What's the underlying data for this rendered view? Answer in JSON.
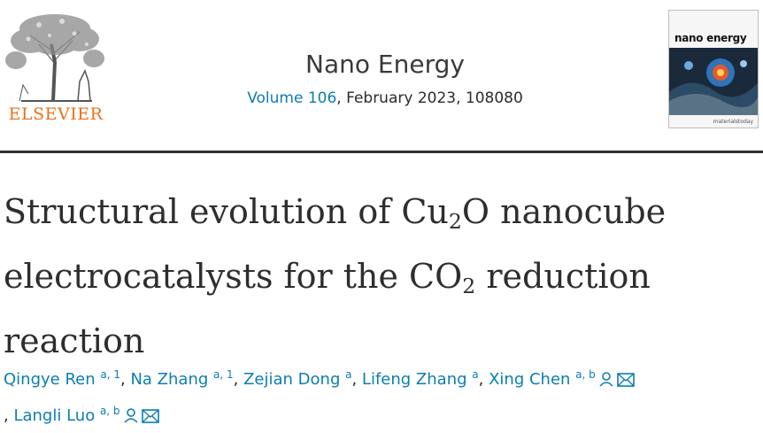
{
  "publisher": {
    "name": "ELSEVIER",
    "logo_icon": "tree-and-scholar-logo-icon"
  },
  "journal": {
    "name": "Nano Energy",
    "volume_link": "Volume 106",
    "issue_text": ", February 2023, 108080"
  },
  "cover": {
    "title": "nano energy",
    "footer": "materialstoday"
  },
  "article": {
    "title_part1": "Structural evolution of Cu",
    "title_sub1": "2",
    "title_part2": "O nanocube electrocatalysts for the CO",
    "title_sub2": "2",
    "title_part3": " reduction reaction"
  },
  "authors": [
    {
      "name": "Qingye Ren",
      "sup": "a, 1",
      "sep": ", "
    },
    {
      "name": "Na Zhang",
      "sup": "a, 1",
      "sep": ", "
    },
    {
      "name": "Zejian Dong",
      "sup": "a",
      "sep": ", "
    },
    {
      "name": "Lifeng Zhang",
      "sup": "a",
      "sep": ", "
    },
    {
      "name": "Xing Chen",
      "sup": "a, b",
      "sep": ""
    },
    {
      "name": "Langli Luo",
      "sup": "a, b",
      "sep": ""
    }
  ],
  "author_sep": ", ",
  "icons": {
    "person": "person-icon",
    "email": "envelope-icon"
  },
  "colors": {
    "link": "#0c7db1",
    "elsevier_orange": "#e9711c",
    "rule": "#333333"
  }
}
